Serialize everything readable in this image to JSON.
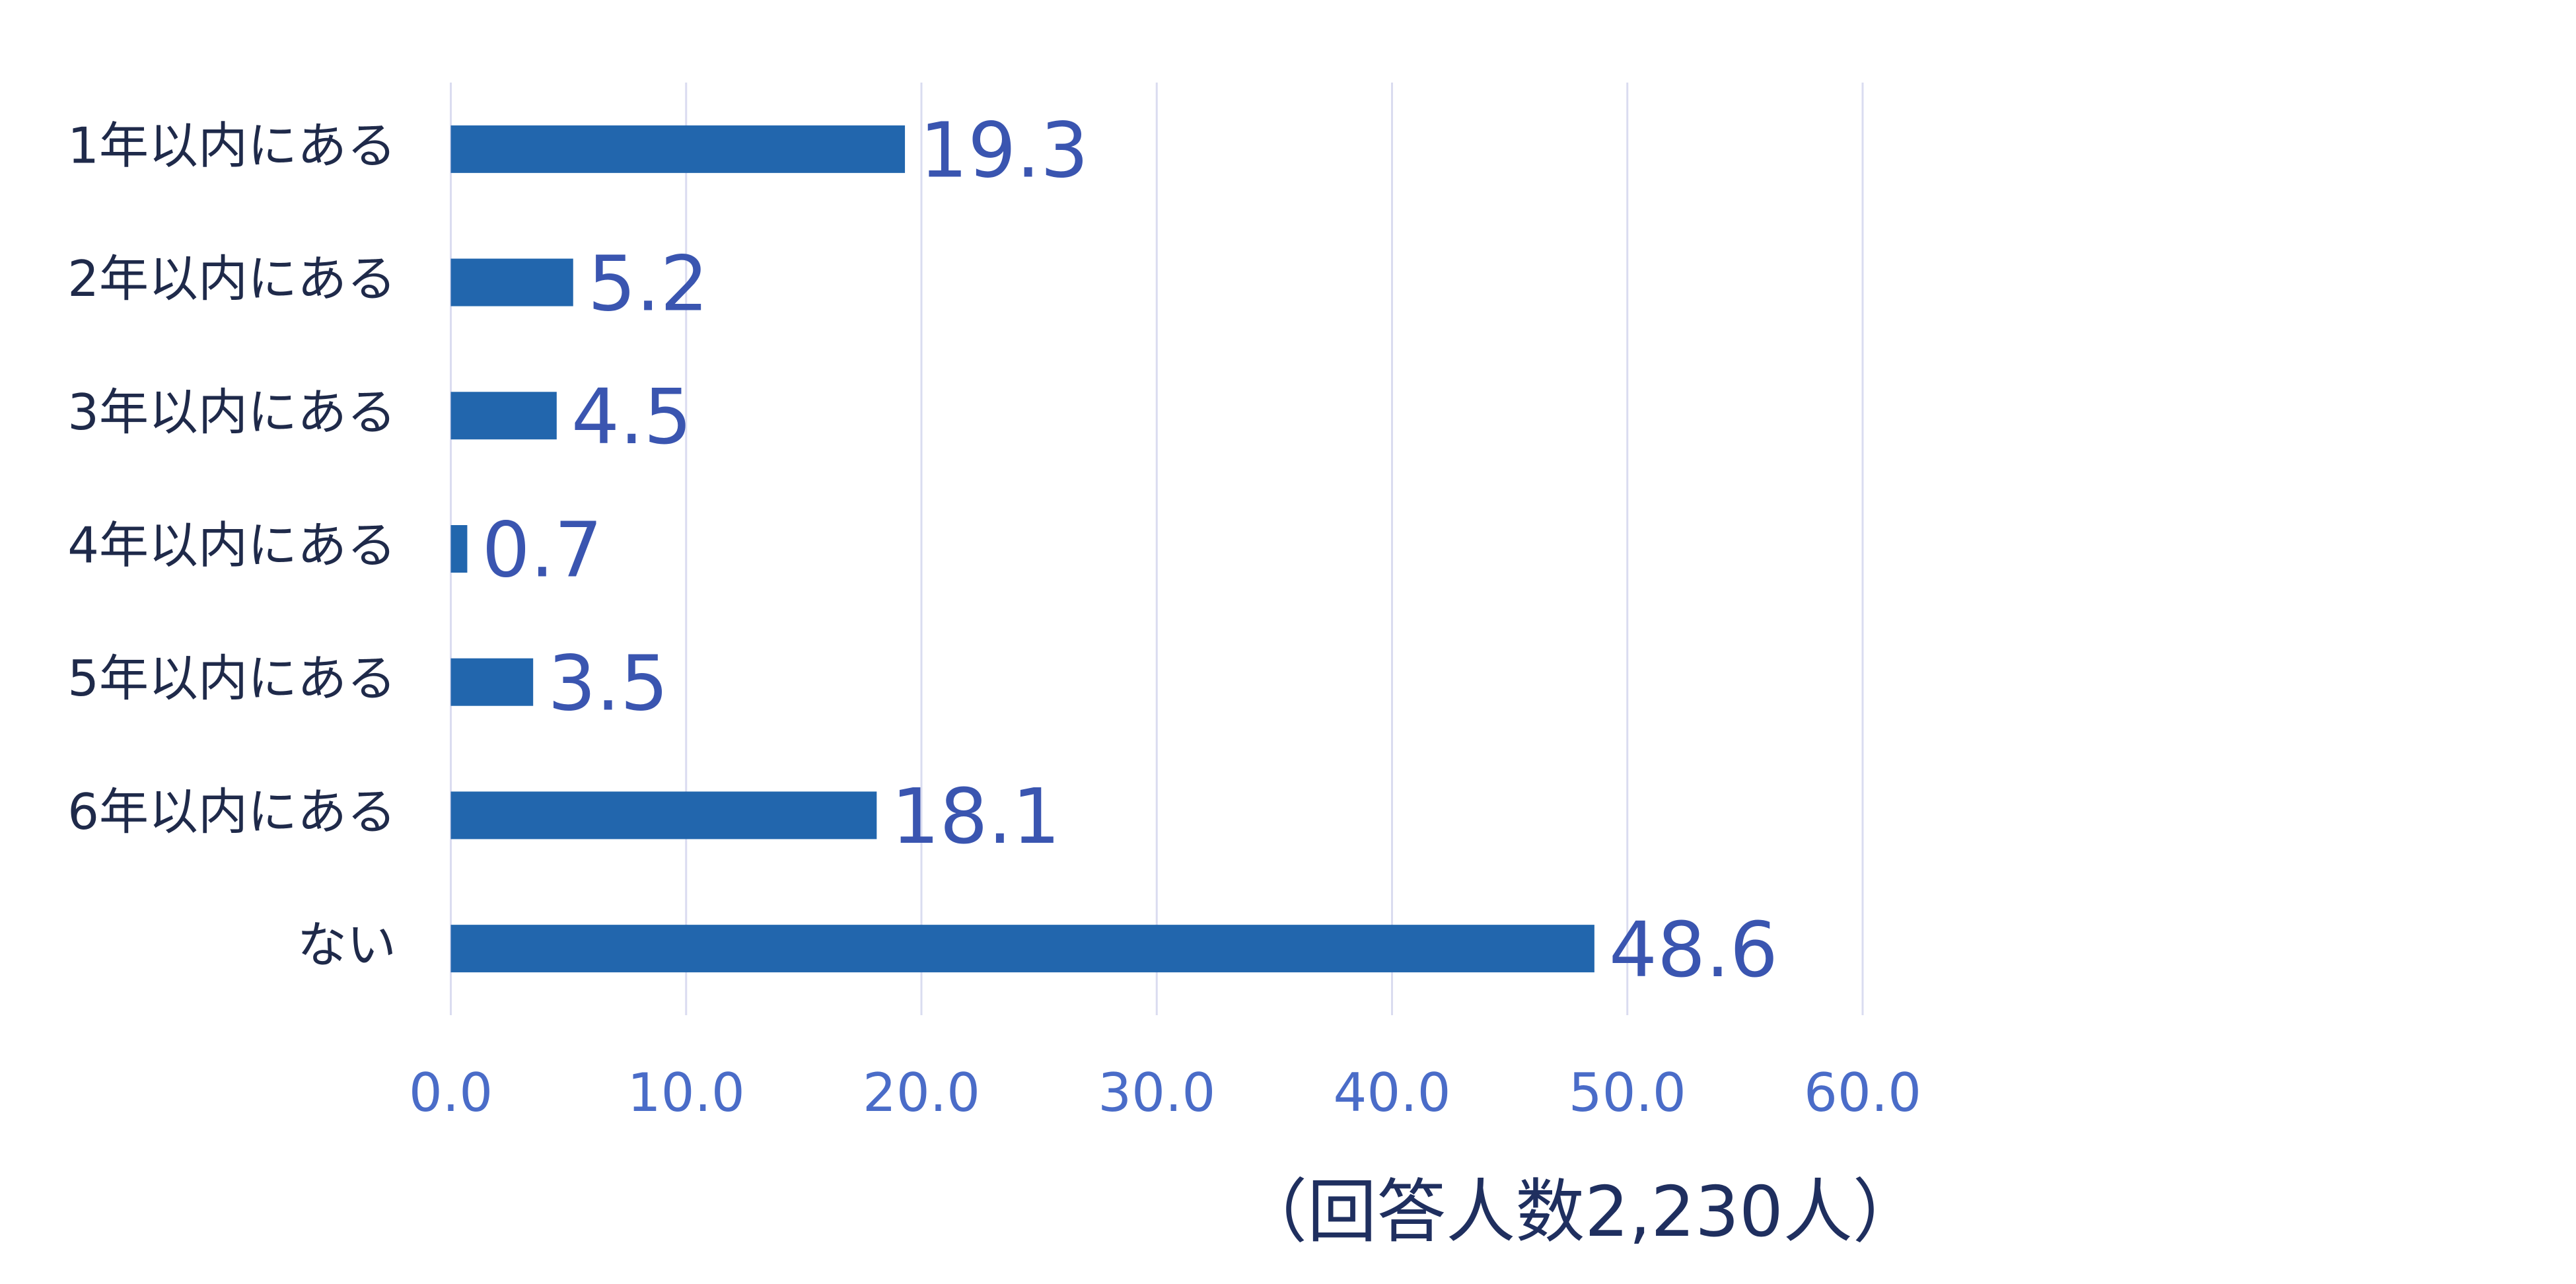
{
  "chart_data": {
    "type": "hbar",
    "categories": [
      "1年以内にある",
      "2年以内にある",
      "3年以内にある",
      "4年以内にある",
      "5年以内にある",
      "6年以内にある",
      "ない"
    ],
    "values": [
      19.3,
      5.2,
      4.5,
      0.7,
      3.5,
      18.1,
      48.6
    ],
    "color": "#2266ad",
    "xlim": [
      0,
      60
    ],
    "xticks": [
      {
        "value": 0,
        "label": "0.0"
      },
      {
        "value": 10,
        "label": "10.0"
      },
      {
        "value": 20,
        "label": "20.0"
      },
      {
        "value": 30,
        "label": "30.0"
      },
      {
        "value": 40,
        "label": "40.0"
      },
      {
        "value": 50,
        "label": "50.0"
      },
      {
        "value": 60,
        "label": "60.0"
      }
    ],
    "grid": true,
    "annotation": "（回答人数2,230人）"
  }
}
